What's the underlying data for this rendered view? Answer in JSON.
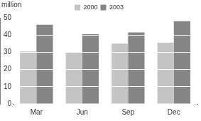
{
  "chart_data": {
    "type": "bar",
    "y_label": "million",
    "categories": [
      "Mar",
      "Jun",
      "Sep",
      "Dec"
    ],
    "series": [
      {
        "name": "2000",
        "color": "#c4c4c4",
        "values": [
          30.5,
          30,
          35,
          35.5
        ]
      },
      {
        "name": "2003",
        "color": "#858585",
        "values": [
          46,
          40.5,
          41.5,
          48
        ]
      }
    ],
    "ylim": [
      0,
      50
    ],
    "yticks": [
      0,
      10,
      20,
      30,
      40,
      50
    ],
    "grid": true,
    "legend": "top"
  }
}
